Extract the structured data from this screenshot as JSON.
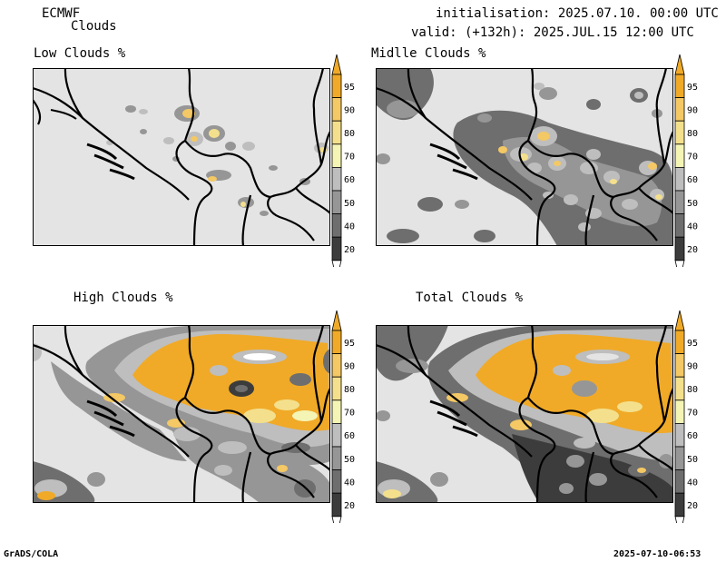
{
  "header": {
    "model": "ECMWF",
    "product": "Clouds",
    "init": "initialisation: 2025.07.10. 00:00 UTC",
    "valid": "valid: (+132h): 2025.JUL.15 12:00 UTC"
  },
  "panels": [
    {
      "id": "low",
      "title": "Low Clouds %"
    },
    {
      "id": "mid",
      "title": "Midlle Clouds %"
    },
    {
      "id": "high",
      "title": "High Clouds %"
    },
    {
      "id": "total",
      "title": "Total Clouds %"
    }
  ],
  "legend": {
    "levels": [
      "20",
      "40",
      "50",
      "60",
      "70",
      "80",
      "90",
      "95"
    ],
    "colors": {
      "c20": "#3c3c3c",
      "c40": "#6e6e6e",
      "c50": "#969696",
      "c60": "#bebebe",
      "c70": "#f4f4b4",
      "c80": "#f4e08c",
      "c90": "#f4c864",
      "c95": "#f0aa28",
      "land": "#e4e4e4",
      "border": "#000000"
    }
  },
  "footer": {
    "left": "GrADS/COLA",
    "right": "2025-07-10-06:53"
  }
}
